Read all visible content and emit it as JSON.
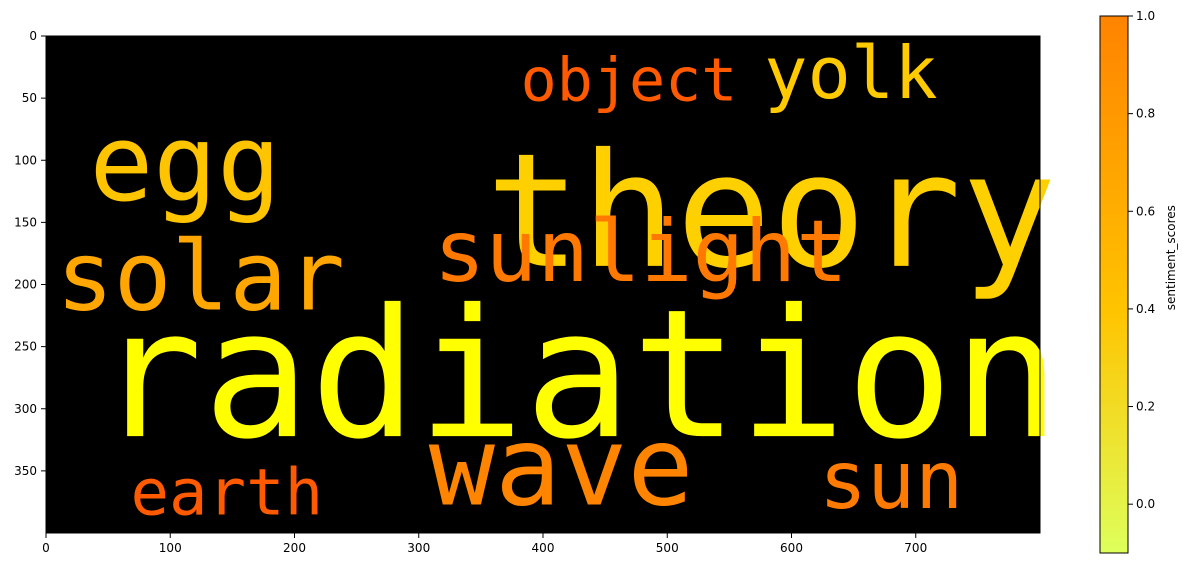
{
  "chart_data": {
    "type": "wordcloud",
    "title": "",
    "x_ticks": [
      "0",
      "100",
      "200",
      "300",
      "400",
      "500",
      "600",
      "700"
    ],
    "y_ticks": [
      "0",
      "50",
      "100",
      "150",
      "200",
      "250",
      "300",
      "350"
    ],
    "xlim": [
      0,
      800
    ],
    "ylim": [
      0,
      400
    ],
    "background": "#000000",
    "words": [
      {
        "text": "radiation",
        "x": 40,
        "y": 322,
        "size": 178,
        "color": "#ffff00",
        "score": 0.0
      },
      {
        "text": "theory",
        "x": 354,
        "y": 185,
        "size": 158,
        "color": "#ffd000",
        "score": 0.32
      },
      {
        "text": "egg",
        "x": 35,
        "y": 132,
        "size": 106,
        "color": "#ffc400",
        "score": 0.38
      },
      {
        "text": "wave",
        "x": 308,
        "y": 377,
        "size": 110,
        "color": "#ff8400",
        "score": 0.78
      },
      {
        "text": "solar",
        "x": 8,
        "y": 220,
        "size": 96,
        "color": "#ffa600",
        "score": 0.55
      },
      {
        "text": "sunlight",
        "x": 312,
        "y": 197,
        "size": 86,
        "color": "#ff7900",
        "score": 0.82
      },
      {
        "text": "sun",
        "x": 622,
        "y": 380,
        "size": 80,
        "color": "#ff7a00",
        "score": 0.82
      },
      {
        "text": "yolk",
        "x": 578,
        "y": 50,
        "size": 72,
        "color": "#ffca00",
        "score": 0.36
      },
      {
        "text": "earth",
        "x": 68,
        "y": 385,
        "size": 64,
        "color": "#ff5a00",
        "score": 0.93
      },
      {
        "text": "object",
        "x": 382,
        "y": 52,
        "size": 60,
        "color": "#ff5a00",
        "score": 0.93
      }
    ],
    "colorbar": {
      "label": "sentiment_scores",
      "range": [
        -0.1,
        1.0
      ],
      "ticks": [
        "0.0",
        "0.2",
        "0.4",
        "0.6",
        "0.8",
        "1.0"
      ],
      "colors": [
        "#deff5b",
        "#ffc400",
        "#ff8300"
      ]
    }
  }
}
